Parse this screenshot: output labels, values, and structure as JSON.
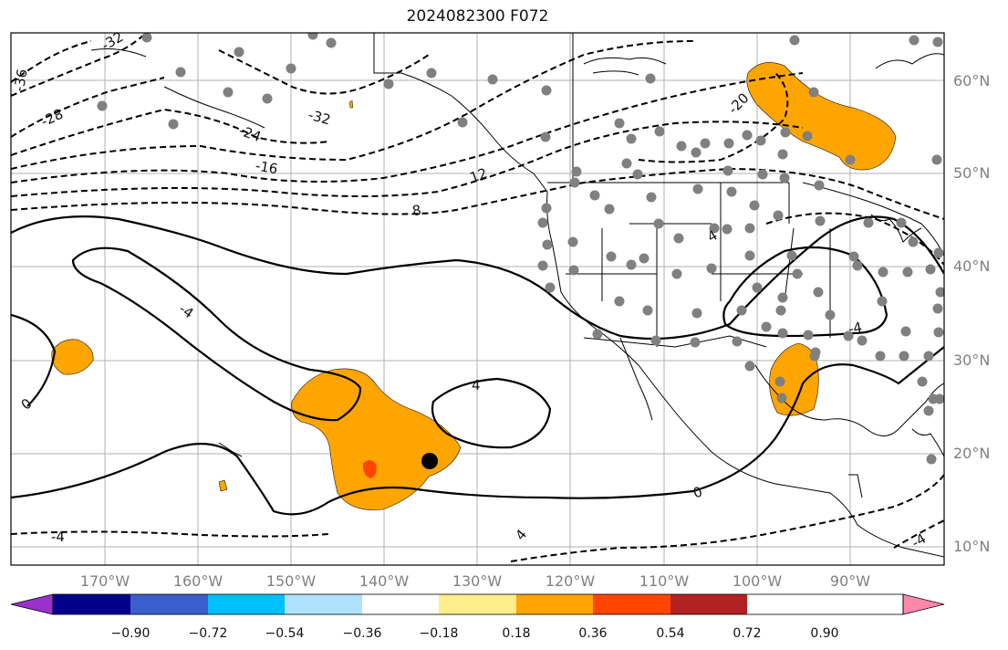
{
  "title": "2024082300 F072",
  "map": {
    "lon_labels": [
      "170°W",
      "160°W",
      "150°W",
      "140°W",
      "130°W",
      "120°W",
      "110°W",
      "100°W",
      "90°W"
    ],
    "lat_labels": [
      "60°N",
      "50°N",
      "40°N",
      "30°N",
      "20°N",
      "10°N"
    ],
    "contour_labels": [
      "-36",
      "-32",
      "-28",
      "-24",
      "-16",
      "-32",
      "12",
      "8",
      "-20",
      "4",
      "-4",
      "4",
      "-4",
      "0",
      "4",
      "0",
      "-4",
      "-4",
      "-8"
    ]
  },
  "colorbar": {
    "colors": [
      "#9932CC",
      "#00008B",
      "#3A5FCD",
      "#00BFFF",
      "#B0E2FF",
      "#FFFFFF",
      "#FFEC8B",
      "#FFA500",
      "#FF4500",
      "#B22222",
      "#FF88AA"
    ],
    "tick_labels": [
      "−0.90",
      "−0.72",
      "−0.54",
      "−0.36",
      "−0.18",
      "0.18",
      "0.36",
      "0.54",
      "0.72",
      "0.90"
    ]
  },
  "colors": {
    "fill_orange": "#FFA500",
    "fill_red": "#FF4500",
    "station": "#808080",
    "contour": "#000000"
  }
}
